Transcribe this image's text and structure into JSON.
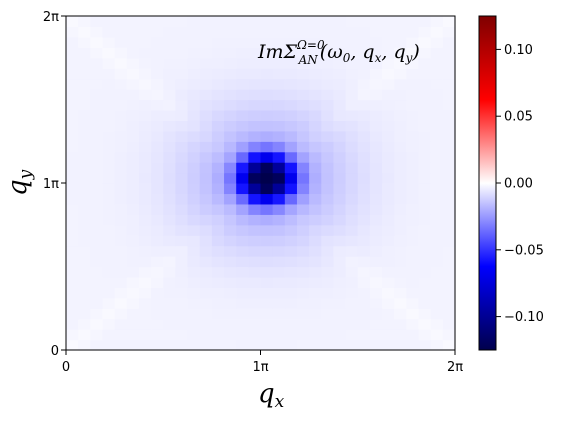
{
  "chart_data": {
    "type": "heatmap",
    "title": "",
    "annotation": {
      "prefix": "ImΣ",
      "superscript": "Ω=0",
      "subscript": "AN",
      "args": "(ω",
      "args_sub": "0",
      "args_rest": ", q",
      "q1_sub": "x",
      "args_sep": ", q",
      "q2_sub": "y",
      "args_close": ")"
    },
    "xlabel": {
      "main": "q",
      "sub": "x"
    },
    "ylabel": {
      "main": "q",
      "sub": "y"
    },
    "x_ticks": [
      {
        "value": 0,
        "label": "0"
      },
      {
        "value": 1,
        "label": "1π"
      },
      {
        "value": 2,
        "label": "2π"
      }
    ],
    "y_ticks": [
      {
        "value": 0,
        "label": "0"
      },
      {
        "value": 1,
        "label": "1π"
      },
      {
        "value": 2,
        "label": "2π"
      }
    ],
    "xlim": [
      0,
      2
    ],
    "ylim": [
      0,
      2
    ],
    "grid_size": 32,
    "colormap": "seismic",
    "colormap_stops": [
      "#00004c",
      "#0000ff",
      "#ffffff",
      "#ff0000",
      "#7f0000"
    ],
    "colorbar": {
      "vmin": -0.125,
      "vmax": 0.125,
      "ticks": [
        {
          "value": -0.1,
          "label": "−0.10"
        },
        {
          "value": -0.05,
          "label": "−0.05"
        },
        {
          "value": 0.0,
          "label": "0.00"
        },
        {
          "value": 0.05,
          "label": "0.05"
        },
        {
          "value": 0.1,
          "label": "0.10"
        }
      ]
    },
    "field": {
      "center": [
        1.03125,
        1.03125
      ],
      "peak_value": -0.125,
      "peak_width": 0.09,
      "halo_value": -0.02,
      "halo_width": 0.3,
      "background_value": -0.003,
      "diagonal_value": 0.0015,
      "diagonal_width": 0.06
    }
  }
}
